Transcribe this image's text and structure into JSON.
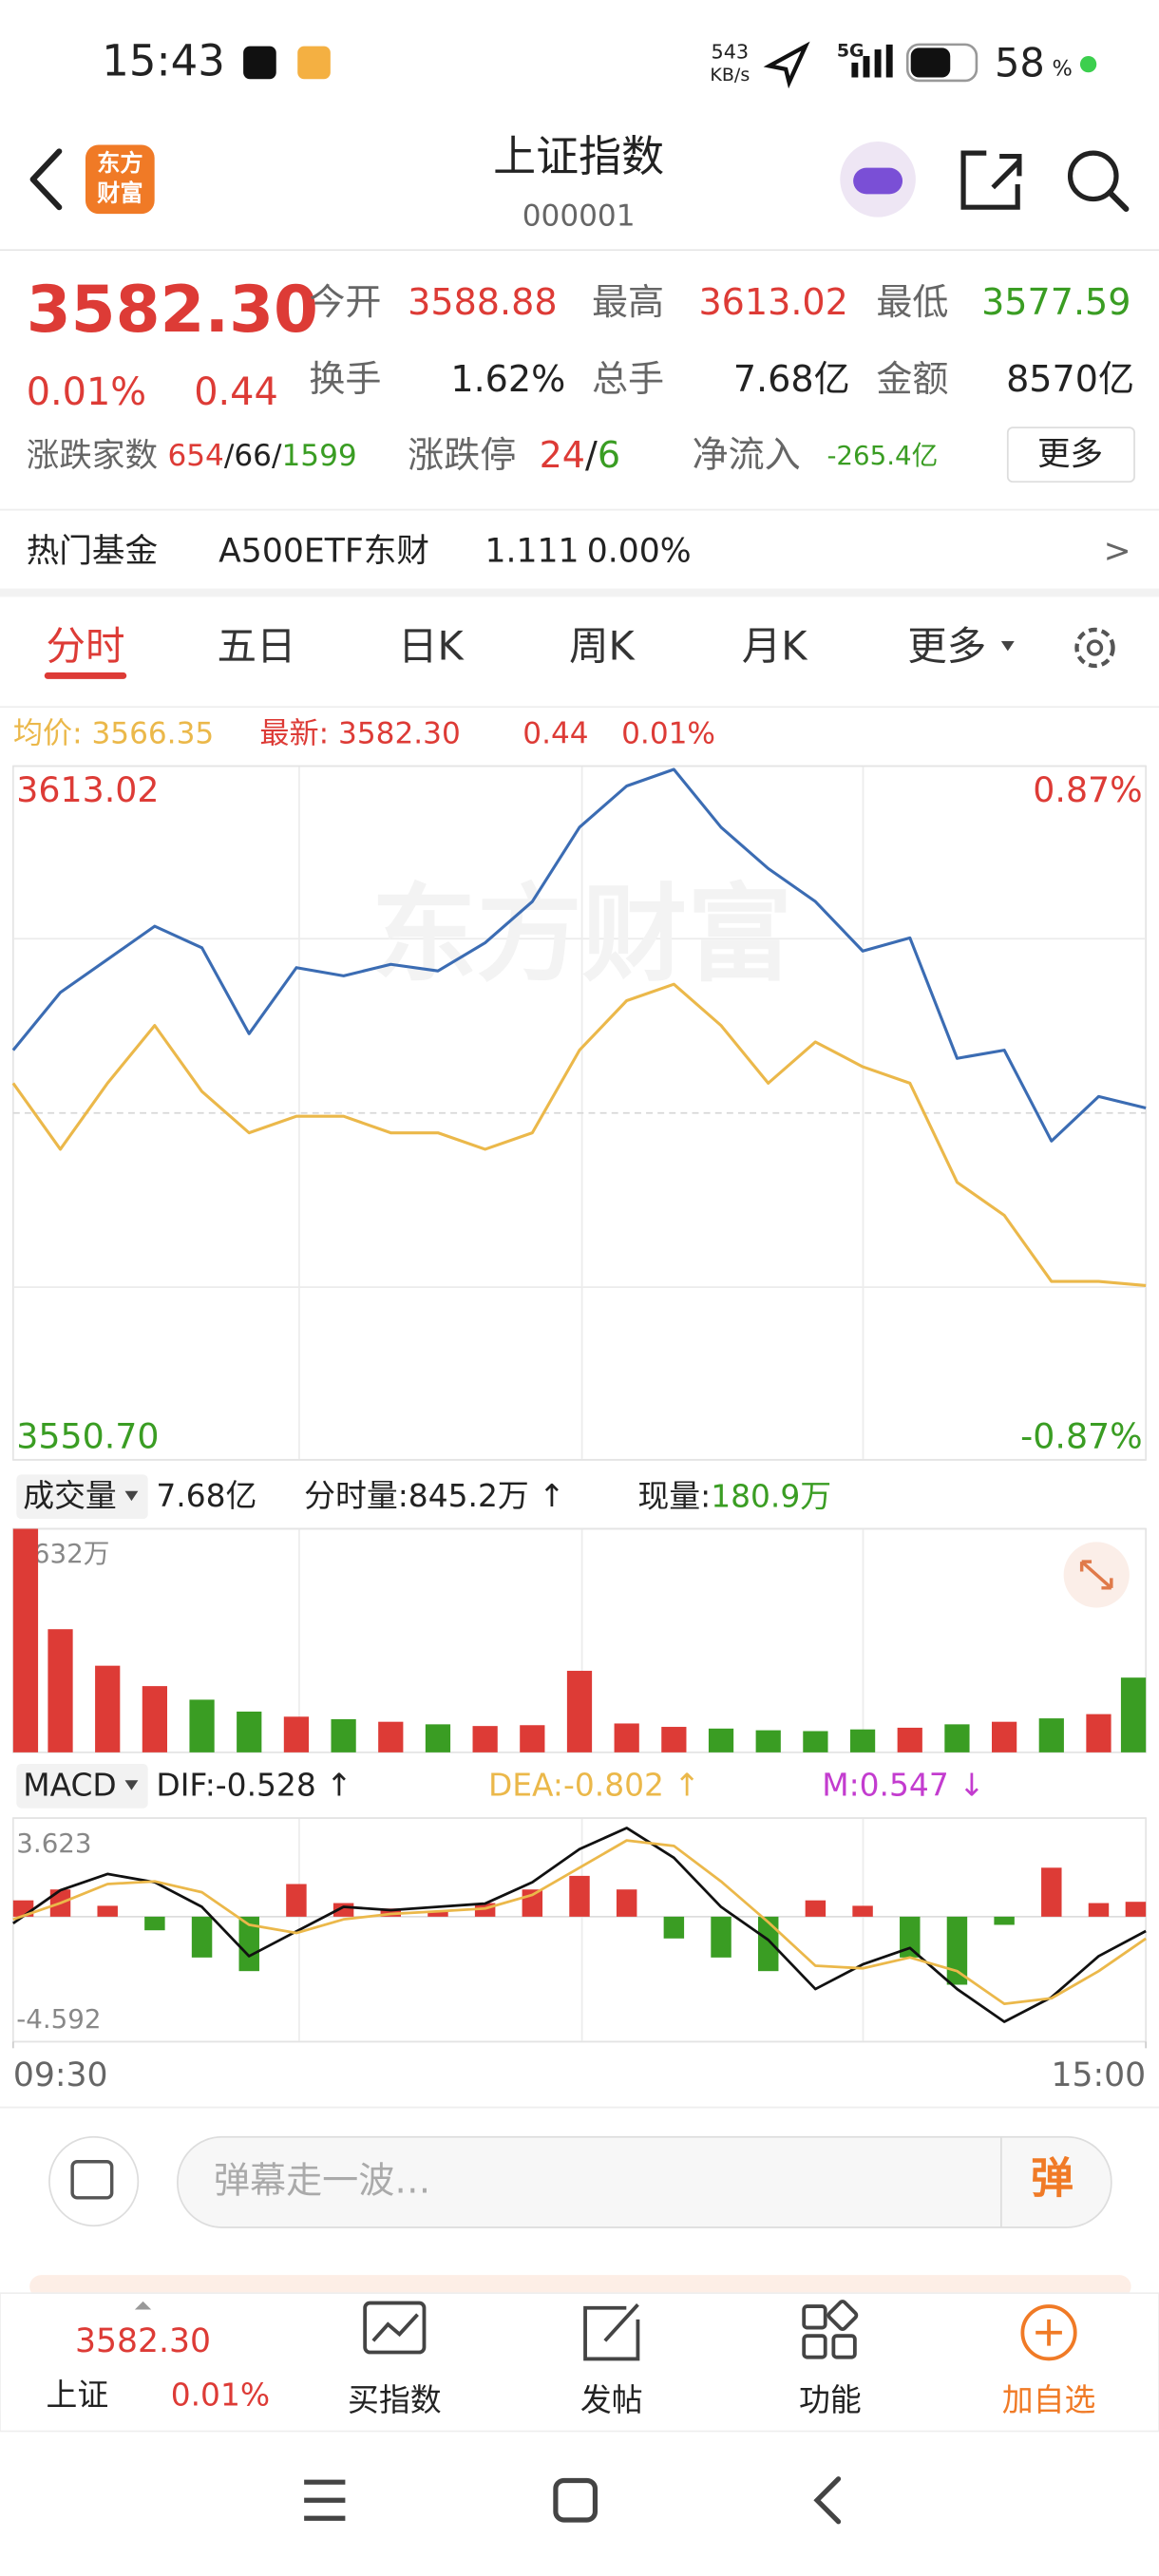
{
  "status_bar": {
    "time": "15:43",
    "net_speed": "543",
    "net_unit": "KB/s",
    "network": "5G",
    "battery": "58",
    "battery_unit": "%"
  },
  "header": {
    "logo": [
      "东方",
      "财富"
    ],
    "title": "上证指数",
    "code": "000001"
  },
  "quote": {
    "price": "3582.30",
    "change_pct": "0.01%",
    "change": "0.44",
    "stats": [
      {
        "label": "今开",
        "value": "3588.88"
      },
      {
        "label": "最高",
        "value": "3613.02"
      },
      {
        "label": "最低",
        "value": "3577.59"
      },
      {
        "label": "换手",
        "value": "1.62%"
      },
      {
        "label": "总手",
        "value": "7.68亿"
      },
      {
        "label": "金额",
        "value": "8570亿"
      }
    ],
    "breadth": {
      "label": "涨跌家数",
      "up": "654",
      "sep": "/",
      "flat": "66",
      "down": "1599"
    },
    "limit": {
      "label": "涨跌停",
      "up": "24",
      "sep": "/",
      "down": "6"
    },
    "inflow": {
      "label": "净流入",
      "value": "-265.4亿"
    },
    "more": "更多"
  },
  "fund": {
    "label": "热门基金",
    "name": "A500ETF东财",
    "price": "1.111",
    "change": "0.00%",
    "arrow": ">"
  },
  "tabs": [
    "分时",
    "五日",
    "日K",
    "周K",
    "月K",
    "更多"
  ],
  "legend": {
    "avg": "均价: 3566.35",
    "last": "最新: 3582.30",
    "change": "0.44",
    "pct": "0.01%"
  },
  "chart_data": [
    {
      "type": "line",
      "watermark": "东方财富",
      "x": [
        0,
        10,
        20,
        30,
        40,
        50,
        60,
        70,
        80,
        90,
        100,
        110,
        120,
        130,
        140,
        150,
        160,
        170,
        180,
        190,
        200,
        210,
        220,
        230,
        240
      ],
      "xlim": [
        0,
        240
      ],
      "ylim": [
        3550.7,
        3613.02
      ],
      "yticks": [
        3613.02,
        {
          "value": 3550.7,
          "label": "3550.70"
        }
      ],
      "y2lim": [
        -0.87,
        0.87
      ],
      "y2ticks": [
        {
          "value": 0.87,
          "label": "0.87%"
        },
        {
          "value": -0.87,
          "label": "-0.87%"
        }
      ],
      "series": [
        {
          "color": "#3b6cb3",
          "values": [
            3587.5,
            3592.69,
            3595.66,
            3598.63,
            3596.7,
            3588.98,
            3594.92,
            3594.18,
            3595.21,
            3594.62,
            3597.14,
            3600.85,
            3607.53,
            3611.24,
            3612.72,
            3607.53,
            3603.82,
            3600.85,
            3596.4,
            3597.59,
            3586.76,
            3587.5,
            3579.34,
            3583.34,
            3582.3
          ]
        },
        {
          "color": "#ebb84a",
          "values": [
            3584.53,
            3578.6,
            3584.53,
            3589.72,
            3583.79,
            3580.08,
            3581.56,
            3581.56,
            3580.08,
            3580.08,
            3578.6,
            3580.08,
            3587.5,
            3591.95,
            3593.43,
            3589.72,
            3584.53,
            3588.24,
            3586.01,
            3584.53,
            3575.63,
            3572.66,
            3566.73,
            3566.73,
            3566.35
          ]
        }
      ]
    },
    {
      "type": "bar",
      "label": "成交量",
      "total": "7.68亿",
      "minute": "分时量:845.2万 ↑",
      "now_label": "现量:",
      "now_value": "180.9万",
      "x": [
        0,
        10,
        20,
        30,
        40,
        50,
        60,
        70,
        80,
        90,
        100,
        110,
        120,
        130,
        140,
        150,
        160,
        170,
        180,
        190,
        200,
        210,
        220,
        230,
        240
      ],
      "xlim": [
        0,
        240
      ],
      "ylim": [
        0,
        2632
      ],
      "yticks": [
        {
          "value": 2632,
          "label": "2632万"
        }
      ],
      "series": [
        {
          "values": [
            2632,
            1450,
            1020,
            780,
            620,
            480,
            420,
            390,
            360,
            330,
            310,
            320,
            960,
            340,
            300,
            280,
            260,
            250,
            270,
            290,
            330,
            360,
            400,
            450,
            880
          ],
          "colors": [
            "#dd3b36",
            "#dd3b36",
            "#dd3b36",
            "#dd3b36",
            "#3a9d23",
            "#3a9d23",
            "#dd3b36",
            "#3a9d23",
            "#dd3b36",
            "#3a9d23",
            "#dd3b36",
            "#dd3b36",
            "#dd3b36",
            "#dd3b36",
            "#dd3b36",
            "#3a9d23",
            "#3a9d23",
            "#3a9d23",
            "#3a9d23",
            "#dd3b36",
            "#3a9d23",
            "#dd3b36",
            "#3a9d23",
            "#dd3b36",
            "#3a9d23"
          ]
        }
      ]
    },
    {
      "type": "macd",
      "label": "MACD",
      "dif": "DIF:-0.528 ↑",
      "dea": "DEA:-0.802 ↑",
      "m": "M:0.547 ↓",
      "x": [
        0,
        10,
        20,
        30,
        40,
        50,
        60,
        70,
        80,
        90,
        100,
        110,
        120,
        130,
        140,
        150,
        160,
        170,
        180,
        190,
        200,
        210,
        220,
        230,
        240
      ],
      "xlim": [
        0,
        240
      ],
      "xticks": [
        {
          "value": 0,
          "label": "09:30"
        },
        {
          "value": 240,
          "label": "15:00"
        }
      ],
      "ylim": [
        -4.592,
        3.623
      ],
      "yticks": [
        3.623,
        -4.592
      ],
      "up_color": "#dd3b36",
      "down_color": "#3a9d23",
      "series": [
        {
          "kind": "bar",
          "values": [
            0.6,
            1.0,
            0.4,
            -0.5,
            -1.5,
            -2.0,
            1.2,
            0.5,
            0.3,
            0.2,
            0.5,
            1.0,
            1.5,
            1.0,
            -0.8,
            -1.5,
            -2.0,
            0.6,
            0.4,
            -1.5,
            -2.5,
            -0.3,
            1.8,
            0.5,
            0.547
          ]
        },
        {
          "kind": "line",
          "color": "#111111",
          "values": [
            -0.24,
            0.97,
            1.57,
            1.27,
            0.36,
            -1.45,
            -0.54,
            0.36,
            0.24,
            0.36,
            0.48,
            1.27,
            2.48,
            3.26,
            2.17,
            0.36,
            -0.85,
            -2.66,
            -1.75,
            -1.15,
            -2.66,
            -3.86,
            -2.96,
            -1.45,
            -0.528
          ]
        },
        {
          "kind": "line",
          "color": "#ebb84a",
          "values": [
            -0.1,
            0.5,
            1.2,
            1.3,
            0.9,
            -0.3,
            -0.6,
            -0.1,
            0.1,
            0.2,
            0.3,
            0.8,
            1.8,
            2.8,
            2.6,
            1.3,
            -0.2,
            -1.8,
            -1.9,
            -1.5,
            -2.0,
            -3.2,
            -3.0,
            -2.0,
            -0.802
          ]
        }
      ]
    }
  ],
  "comment": {
    "placeholder": "弹幕走一波…",
    "button": "弹"
  },
  "bottom_nav": {
    "price": "3582.30",
    "name": "上证",
    "pct": "0.01%",
    "items": [
      "买指数",
      "发帖",
      "功能",
      "加自选"
    ]
  }
}
